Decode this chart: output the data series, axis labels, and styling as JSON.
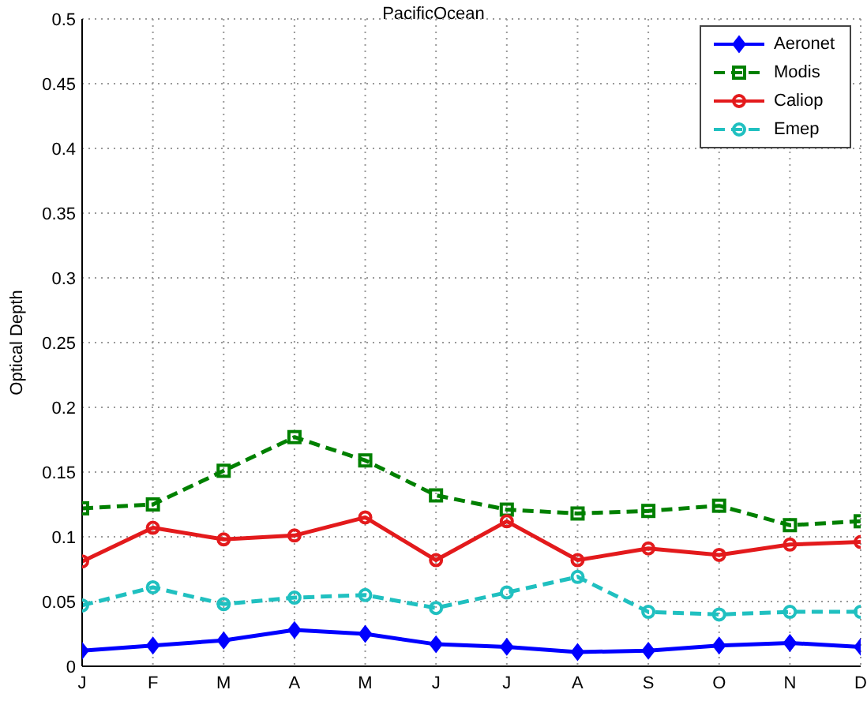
{
  "chart_data": {
    "type": "line",
    "title": "PacificOcean",
    "ylabel": "Optical Depth",
    "categories": [
      "J",
      "F",
      "M",
      "A",
      "M",
      "J",
      "J",
      "A",
      "S",
      "O",
      "N",
      "D"
    ],
    "series": [
      {
        "name": "Aeronet",
        "color": "#0000ff",
        "marker": "diamond",
        "line_style": "solid",
        "values": [
          0.012,
          0.016,
          0.02,
          0.028,
          0.025,
          0.017,
          0.015,
          0.011,
          0.012,
          0.016,
          0.018,
          0.015
        ]
      },
      {
        "name": "Modis",
        "color": "#008000",
        "marker": "square",
        "line_style": "dashed",
        "values": [
          0.122,
          0.125,
          0.151,
          0.177,
          0.159,
          0.132,
          0.121,
          0.118,
          0.12,
          0.124,
          0.109,
          0.112
        ]
      },
      {
        "name": "Caliop",
        "color": "#e31a1c",
        "marker": "circle",
        "line_style": "solid",
        "values": [
          0.081,
          0.107,
          0.098,
          0.101,
          0.115,
          0.082,
          0.112,
          0.082,
          0.091,
          0.086,
          0.094,
          0.096
        ]
      },
      {
        "name": "Emep",
        "color": "#20c0c0",
        "marker": "circle",
        "line_style": "dashed",
        "values": [
          0.047,
          0.061,
          0.048,
          0.053,
          0.055,
          0.045,
          0.057,
          0.069,
          0.042,
          0.04,
          0.042,
          0.042
        ]
      }
    ],
    "ylim": [
      0,
      0.5
    ],
    "yticks": [
      0,
      0.05,
      0.1,
      0.15,
      0.2,
      0.25,
      0.3,
      0.35,
      0.4,
      0.45,
      0.5
    ],
    "grid": true,
    "legend": "top right"
  }
}
